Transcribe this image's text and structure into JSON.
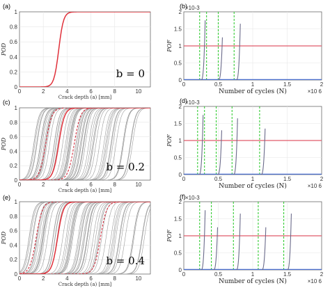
{
  "chart_data": [
    {
      "panel": "(a)",
      "type": "line",
      "ylabel": "POD",
      "xlabel": "Crack depth (a) [mm]",
      "annotation": "b = 0",
      "xlim": [
        0,
        11
      ],
      "ylim": [
        0,
        1
      ],
      "xticks": [
        "0",
        "2",
        "4",
        "6",
        "8",
        "10"
      ],
      "yticks": [
        "0",
        "0.2",
        "0.4",
        "0.6",
        "0.8",
        "1"
      ],
      "grid": true,
      "series": [
        {
          "color": "#e0303a",
          "style": "solid",
          "x": [
            0,
            2.0,
            2.8,
            3.0,
            3.2,
            3.4,
            3.6,
            3.8,
            4.2,
            11
          ],
          "y": [
            0,
            0,
            0.03,
            0.12,
            0.42,
            0.78,
            0.96,
            1.0,
            1.0,
            1.0
          ]
        }
      ]
    },
    {
      "panel": "(b)",
      "type": "line",
      "ylabel": "POF",
      "xlabel": "Number of cycles (N)",
      "y_multiplier": "×10-3",
      "x_multiplier": "×10 6",
      "xlim": [
        0,
        2
      ],
      "ylim": [
        0,
        2
      ],
      "xticks": [
        "0",
        "0.5",
        "1",
        "1.5",
        "2"
      ],
      "yticks": [
        "0",
        "0.5",
        "1",
        "1.5",
        "2"
      ],
      "grid": true,
      "threshold": 1.0,
      "inspections": [
        0.23,
        0.33,
        0.5,
        0.73
      ],
      "pof_curves": [
        {
          "x_start": 0.25,
          "x_end": 0.31,
          "peak": 1.75
        },
        {
          "x_start": 0.5,
          "x_end": 0.56,
          "peak": 1.25
        },
        {
          "x_start": 0.76,
          "x_end": 0.82,
          "peak": 1.65
        }
      ]
    },
    {
      "panel": "(c)",
      "type": "line",
      "ylabel": "POD",
      "xlabel": "Crack depth (a) [mm]",
      "annotation": "b = 0.2",
      "xlim": [
        0,
        11
      ],
      "ylim": [
        0,
        1
      ],
      "xticks": [
        "0",
        "2",
        "4",
        "6",
        "8",
        "10"
      ],
      "yticks": [
        "0",
        "0.2",
        "0.4",
        "0.6",
        "0.8",
        "1"
      ],
      "grid": true,
      "spread_range": [
        1.2,
        9.5
      ],
      "mean_midpoint": 3.3,
      "bound_midpoints": [
        2.2,
        4.6
      ]
    },
    {
      "panel": "(d)",
      "type": "line",
      "ylabel": "POF",
      "xlabel": "Number of cycles (N)",
      "y_multiplier": "×10-3",
      "x_multiplier": "×10 6",
      "xlim": [
        0,
        2
      ],
      "ylim": [
        0,
        2
      ],
      "xticks": [
        "0",
        "0.5",
        "1",
        "1.5",
        "2"
      ],
      "yticks": [
        "0",
        "0.5",
        "1",
        "1.5",
        "2"
      ],
      "grid": true,
      "threshold": 1.0,
      "inspections": [
        0.2,
        0.3,
        0.47,
        0.7,
        1.1
      ],
      "pof_curves": [
        {
          "x_start": 0.22,
          "x_end": 0.28,
          "peak": 1.75
        },
        {
          "x_start": 0.49,
          "x_end": 0.55,
          "peak": 1.3
        },
        {
          "x_start": 0.72,
          "x_end": 0.78,
          "peak": 1.65
        },
        {
          "x_start": 1.12,
          "x_end": 1.18,
          "peak": 1.35
        }
      ]
    },
    {
      "panel": "(e)",
      "type": "line",
      "ylabel": "POD",
      "xlabel": "Crack depth (a) [mm]",
      "annotation": "b = 0.4",
      "xlim": [
        0,
        11
      ],
      "ylim": [
        0,
        1
      ],
      "xticks": [
        "0",
        "2",
        "4",
        "6",
        "8",
        "10"
      ],
      "yticks": [
        "0",
        "0.2",
        "0.4",
        "0.6",
        "0.8",
        "1"
      ],
      "grid": true,
      "spread_range": [
        0.8,
        10.5
      ],
      "mean_midpoint": 3.2,
      "bound_midpoints": [
        1.4,
        6.8
      ]
    },
    {
      "panel": "(f)",
      "type": "line",
      "ylabel": "POF",
      "xlabel": "Number of cycles (N)",
      "y_multiplier": "×10-3",
      "x_multiplier": "×10 6",
      "xlim": [
        0,
        2
      ],
      "ylim": [
        0,
        2
      ],
      "xticks": [
        "0",
        "0.5",
        "1",
        "1.5",
        "2"
      ],
      "yticks": [
        "0",
        "0.5",
        "1",
        "1.5",
        "2"
      ],
      "grid": true,
      "threshold": 1.0,
      "inspections": [
        0.23,
        0.4,
        0.72,
        1.08,
        1.45
      ],
      "pof_curves": [
        {
          "x_start": 0.25,
          "x_end": 0.31,
          "peak": 1.75
        },
        {
          "x_start": 0.43,
          "x_end": 0.49,
          "peak": 1.25
        },
        {
          "x_start": 0.76,
          "x_end": 0.82,
          "peak": 1.65
        },
        {
          "x_start": 1.13,
          "x_end": 1.19,
          "peak": 1.25
        },
        {
          "x_start": 1.5,
          "x_end": 1.56,
          "peak": 1.65
        }
      ]
    }
  ],
  "colors": {
    "pod_mean": "#e0303a",
    "pod_bound": "#d43040",
    "pod_spread": "#9a9a9a",
    "threshold": "#e05a6a",
    "inspection": "#33cc33",
    "pof_curve": "#6a6a8a",
    "baseline": "#4a6fd0",
    "grid": "#e6e6e6"
  }
}
